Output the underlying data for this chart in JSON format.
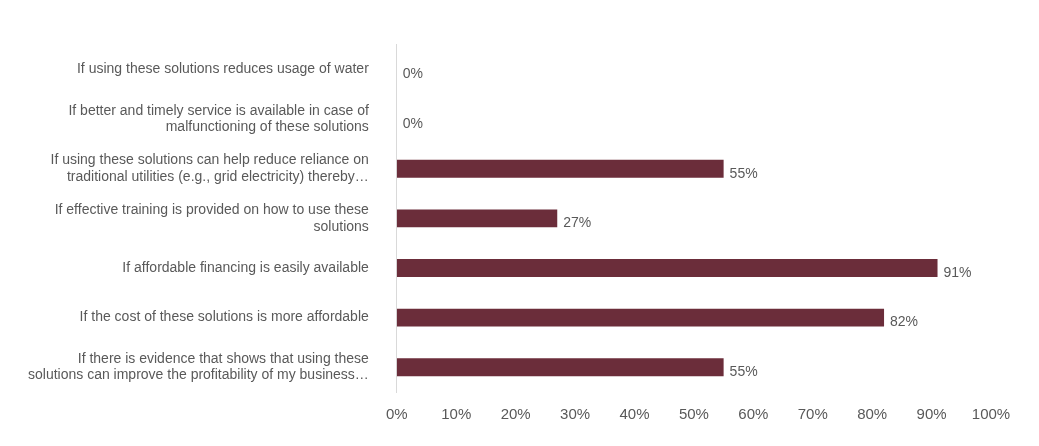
{
  "chart_data": {
    "type": "bar",
    "orientation": "horizontal",
    "categories": [
      "If using these solutions reduces usage of water",
      "If better and timely service is available in case of malfunctioning of these solutions",
      "If using these solutions can help reduce reliance on traditional utilities (e.g., grid electricity) thereby…",
      "If effective training is provided on how to use these solutions",
      "If affordable financing is easily available",
      "If the cost of these solutions is more affordable",
      "If there is evidence that shows that using these solutions can improve the profitability of my business…"
    ],
    "values": [
      0,
      0,
      55,
      27,
      91,
      82,
      55
    ],
    "color": "#6b2d3a",
    "xlim": [
      0,
      100
    ],
    "xticks": [
      {
        "value": 0,
        "label": "0%"
      },
      {
        "value": 10,
        "label": "10%"
      },
      {
        "value": 20,
        "label": "20%"
      },
      {
        "value": 30,
        "label": "30%"
      },
      {
        "value": 40,
        "label": "40%"
      },
      {
        "value": 50,
        "label": "50%"
      },
      {
        "value": 60,
        "label": "60%"
      },
      {
        "value": 70,
        "label": "70%"
      },
      {
        "value": 80,
        "label": "80%"
      },
      {
        "value": 90,
        "label": "90%"
      },
      {
        "value": 100,
        "label": "100%"
      }
    ],
    "value_labels": [
      "0%",
      "0%",
      "55%",
      "27%",
      "91%",
      "82%",
      "55%"
    ],
    "grid": false,
    "legend": false
  }
}
